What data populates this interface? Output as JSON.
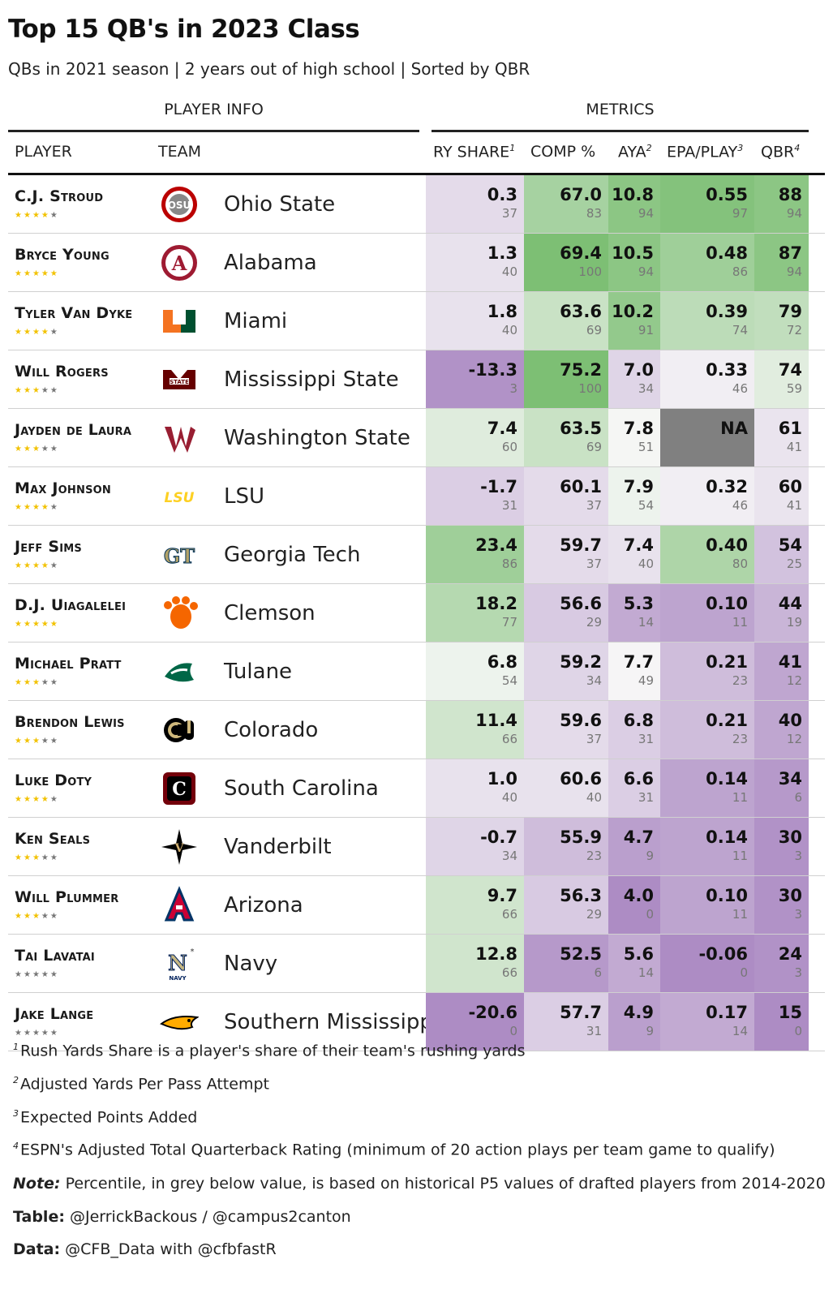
{
  "title": "Top 15 QB's in 2023 Class",
  "subtitle": "QBs in 2021 season | 2 years out of high school | Sorted by QBR",
  "spanners": {
    "player_info": "PLAYER INFO",
    "metrics": "METRICS"
  },
  "columns": {
    "player": "PLAYER",
    "team": "TEAM",
    "ry_share": "RY SHARE",
    "ry_share_note": "1",
    "comp": "COMP %",
    "aya": "AYA",
    "aya_note": "2",
    "epa": "EPA/PLAY",
    "epa_note": "3",
    "qbr": "QBR",
    "qbr_note": "4"
  },
  "colors": {
    "green_strong": "#7dbf74",
    "purple_strong": "#ad8cc4",
    "na": "#808080"
  },
  "rows": [
    {
      "player": "C.J. Stroud",
      "stars": "★★★★★",
      "star_count": 4,
      "team": "Ohio State",
      "logo": "ohio-state-logo",
      "ry": "0.3",
      "ry_pct": "37",
      "comp": "67.0",
      "comp_pct": "83",
      "aya": "10.8",
      "aya_pct": "94",
      "epa": "0.55",
      "epa_pct": "97",
      "qbr": "88",
      "qbr_pct": "94"
    },
    {
      "player": "Bryce Young",
      "stars": "★★★★★",
      "star_count": 5,
      "team": "Alabama",
      "logo": "alabama-logo",
      "ry": "1.3",
      "ry_pct": "40",
      "comp": "69.4",
      "comp_pct": "100",
      "aya": "10.5",
      "aya_pct": "94",
      "epa": "0.48",
      "epa_pct": "86",
      "qbr": "87",
      "qbr_pct": "94"
    },
    {
      "player": "Tyler Van Dyke",
      "stars": "★★★★★",
      "star_count": 4,
      "team": "Miami",
      "logo": "miami-logo",
      "ry": "1.8",
      "ry_pct": "40",
      "comp": "63.6",
      "comp_pct": "69",
      "aya": "10.2",
      "aya_pct": "91",
      "epa": "0.39",
      "epa_pct": "74",
      "qbr": "79",
      "qbr_pct": "72"
    },
    {
      "player": "Will Rogers",
      "stars": "★★★★★",
      "star_count": 3,
      "team": "Mississippi State",
      "logo": "mississippi-state-logo",
      "ry": "-13.3",
      "ry_pct": "3",
      "comp": "75.2",
      "comp_pct": "100",
      "aya": "7.0",
      "aya_pct": "34",
      "epa": "0.33",
      "epa_pct": "46",
      "qbr": "74",
      "qbr_pct": "59"
    },
    {
      "player": "Jayden de Laura",
      "stars": "★★★★★",
      "star_count": 3,
      "team": "Washington State",
      "logo": "washington-state-logo",
      "ry": "7.4",
      "ry_pct": "60",
      "comp": "63.5",
      "comp_pct": "69",
      "aya": "7.8",
      "aya_pct": "51",
      "epa": "NA",
      "epa_pct": "",
      "qbr": "61",
      "qbr_pct": "41"
    },
    {
      "player": "Max Johnson",
      "stars": "★★★★★",
      "star_count": 4,
      "team": "LSU",
      "logo": "lsu-logo",
      "ry": "-1.7",
      "ry_pct": "31",
      "comp": "60.1",
      "comp_pct": "37",
      "aya": "7.9",
      "aya_pct": "54",
      "epa": "0.32",
      "epa_pct": "46",
      "qbr": "60",
      "qbr_pct": "41"
    },
    {
      "player": "Jeff Sims",
      "stars": "★★★★★",
      "star_count": 4,
      "team": "Georgia Tech",
      "logo": "georgia-tech-logo",
      "ry": "23.4",
      "ry_pct": "86",
      "comp": "59.7",
      "comp_pct": "37",
      "aya": "7.4",
      "aya_pct": "40",
      "epa": "0.40",
      "epa_pct": "80",
      "qbr": "54",
      "qbr_pct": "25"
    },
    {
      "player": "D.J. Uiagalelei",
      "stars": "★★★★★",
      "star_count": 5,
      "team": "Clemson",
      "logo": "clemson-logo",
      "ry": "18.2",
      "ry_pct": "77",
      "comp": "56.6",
      "comp_pct": "29",
      "aya": "5.3",
      "aya_pct": "14",
      "epa": "0.10",
      "epa_pct": "11",
      "qbr": "44",
      "qbr_pct": "19"
    },
    {
      "player": "Michael Pratt",
      "stars": "★★★★★",
      "star_count": 3,
      "team": "Tulane",
      "logo": "tulane-logo",
      "ry": "6.8",
      "ry_pct": "54",
      "comp": "59.2",
      "comp_pct": "34",
      "aya": "7.7",
      "aya_pct": "49",
      "epa": "0.21",
      "epa_pct": "23",
      "qbr": "41",
      "qbr_pct": "12"
    },
    {
      "player": "Brendon Lewis",
      "stars": "★★★★★",
      "star_count": 3,
      "team": "Colorado",
      "logo": "colorado-logo",
      "ry": "11.4",
      "ry_pct": "66",
      "comp": "59.6",
      "comp_pct": "37",
      "aya": "6.8",
      "aya_pct": "31",
      "epa": "0.21",
      "epa_pct": "23",
      "qbr": "40",
      "qbr_pct": "12"
    },
    {
      "player": "Luke Doty",
      "stars": "★★★★★",
      "star_count": 4,
      "team": "South Carolina",
      "logo": "south-carolina-logo",
      "ry": "1.0",
      "ry_pct": "40",
      "comp": "60.6",
      "comp_pct": "40",
      "aya": "6.6",
      "aya_pct": "31",
      "epa": "0.14",
      "epa_pct": "11",
      "qbr": "34",
      "qbr_pct": "6"
    },
    {
      "player": "Ken Seals",
      "stars": "★★★★★",
      "star_count": 3,
      "team": "Vanderbilt",
      "logo": "vanderbilt-logo",
      "ry": "-0.7",
      "ry_pct": "34",
      "comp": "55.9",
      "comp_pct": "23",
      "aya": "4.7",
      "aya_pct": "9",
      "epa": "0.14",
      "epa_pct": "11",
      "qbr": "30",
      "qbr_pct": "3"
    },
    {
      "player": "Will Plummer",
      "stars": "★★★★★",
      "star_count": 3,
      "team": "Arizona",
      "logo": "arizona-logo",
      "ry": "9.7",
      "ry_pct": "66",
      "comp": "56.3",
      "comp_pct": "29",
      "aya": "4.0",
      "aya_pct": "0",
      "epa": "0.10",
      "epa_pct": "11",
      "qbr": "30",
      "qbr_pct": "3"
    },
    {
      "player": "Tai Lavatai",
      "stars": "★★★★★",
      "star_count": 0,
      "team": "Navy",
      "logo": "navy-logo",
      "ry": "12.8",
      "ry_pct": "66",
      "comp": "52.5",
      "comp_pct": "6",
      "aya": "5.6",
      "aya_pct": "14",
      "epa": "-0.06",
      "epa_pct": "0",
      "qbr": "24",
      "qbr_pct": "3"
    },
    {
      "player": "Jake Lange",
      "stars": "★★★★★",
      "star_count": 0,
      "team": "Southern Mississippi",
      "logo": "southern-miss-logo",
      "ry": "-20.6",
      "ry_pct": "0",
      "comp": "57.7",
      "comp_pct": "31",
      "aya": "4.9",
      "aya_pct": "9",
      "epa": "0.17",
      "epa_pct": "14",
      "qbr": "15",
      "qbr_pct": "0"
    }
  ],
  "footnotes": {
    "n1": "1",
    "t1": "Rush Yards Share is a player's share of their team's rushing yards",
    "n2": "2",
    "t2": "Adjusted Yards Per Pass Attempt",
    "n3": "3",
    "t3": "Expected Points Added",
    "n4": "4",
    "t4": "ESPN's Adjusted Total Quarterback Rating (minimum of 20 action plays per team game to qualify)",
    "note_label": "Note:",
    "note": " Percentile, in grey below value, is based on historical P5 values of drafted players from 2014-2020",
    "table_label": "Table:",
    "table": " @JerrickBackous / @campus2canton",
    "data_label": "Data:",
    "data": " @CFB_Data with @cfbfastR"
  }
}
